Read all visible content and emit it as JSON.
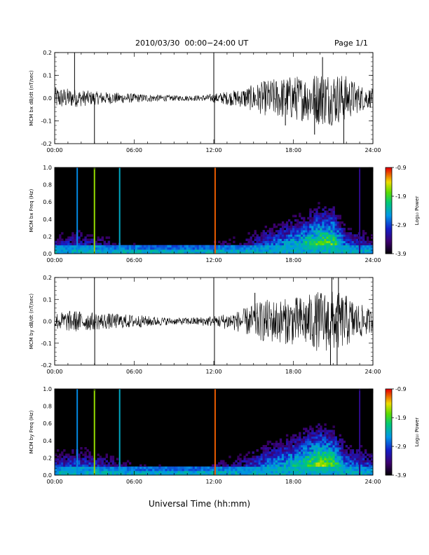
{
  "header": {
    "title": "2010/03/30  00:00−24:00 UT",
    "page": "Page 1/1"
  },
  "footer": {
    "xlabel": "Universal Time (hh:mm)"
  },
  "colorbar": {
    "title": "Log₁₀ Power",
    "ticks": [
      "-0.9",
      "-1.9",
      "-2.9",
      "-3.9"
    ],
    "range": [
      -3.9,
      -0.9
    ]
  },
  "chart_data": [
    {
      "type": "line",
      "panel": "bx-timeseries",
      "ylabel": "MCM bx dB/dt (nT/sec)",
      "xlim": [
        0,
        24
      ],
      "ylim": [
        -0.2,
        0.2
      ],
      "x_ticks": [
        "00:00",
        "06:00",
        "12:00",
        "18:00",
        "24:00"
      ],
      "y_ticks": [
        "0.2",
        "0.1",
        "0.0",
        "-0.1",
        "-0.2"
      ],
      "noise_envelope": [
        [
          0,
          0.05
        ],
        [
          1.5,
          0.04
        ],
        [
          3,
          0.03
        ],
        [
          6,
          0.02
        ],
        [
          9,
          0.012
        ],
        [
          11,
          0.012
        ],
        [
          12,
          0.02
        ],
        [
          14,
          0.04
        ],
        [
          15,
          0.06
        ],
        [
          16,
          0.08
        ],
        [
          17,
          0.09
        ],
        [
          18,
          0.1
        ],
        [
          19,
          0.1
        ],
        [
          20,
          0.12
        ],
        [
          21,
          0.12
        ],
        [
          22,
          0.1
        ],
        [
          23,
          0.06
        ],
        [
          24,
          0.04
        ]
      ],
      "spikes": [
        {
          "x": 1.5,
          "y": 0.21
        },
        {
          "x": 3.0,
          "y": -0.21
        },
        {
          "x": 12.0,
          "y": 0.22
        },
        {
          "x": 12.05,
          "y": -0.22
        },
        {
          "x": 21.8,
          "y": -0.21
        },
        {
          "x": 20.2,
          "y": 0.18
        },
        {
          "x": 19.6,
          "y": -0.16
        },
        {
          "x": 17.4,
          "y": -0.12
        }
      ]
    },
    {
      "type": "heatmap",
      "panel": "bx-spectrogram",
      "ylabel": "MCM bx Freq (Hz)",
      "xlim": [
        0,
        24
      ],
      "ylim": [
        0,
        1
      ],
      "x_ticks": [
        "00:00",
        "06:00",
        "12:00",
        "18:00",
        "24:00"
      ],
      "y_ticks": [
        "1.0",
        "0.8",
        "0.6",
        "0.4",
        "0.2",
        "0.0"
      ],
      "color_range": [
        -3.9,
        -0.9
      ],
      "activity": [
        [
          0,
          0.25
        ],
        [
          2,
          0.3
        ],
        [
          4,
          0.2
        ],
        [
          6,
          0.12
        ],
        [
          9,
          0.08
        ],
        [
          11,
          0.1
        ],
        [
          12,
          0.15
        ],
        [
          14,
          0.2
        ],
        [
          16,
          0.35
        ],
        [
          18,
          0.45
        ],
        [
          20,
          0.6
        ],
        [
          21,
          0.6
        ],
        [
          22,
          0.35
        ],
        [
          24,
          0.25
        ]
      ],
      "vertical_lines": [
        {
          "x": 1.7,
          "level": -2.6
        },
        {
          "x": 3.0,
          "level": -1.6
        },
        {
          "x": 4.9,
          "level": -2.4
        },
        {
          "x": 12.1,
          "level": -1.1
        },
        {
          "x": 23.0,
          "level": -3.3
        }
      ]
    },
    {
      "type": "line",
      "panel": "by-timeseries",
      "ylabel": "MCM by dB/dt (nT/sec)",
      "xlim": [
        0,
        24
      ],
      "ylim": [
        -0.2,
        0.2
      ],
      "x_ticks": [
        "00:00",
        "06:00",
        "12:00",
        "18:00",
        "24:00"
      ],
      "y_ticks": [
        "0.2",
        "0.1",
        "0.0",
        "-0.1",
        "-0.2"
      ],
      "noise_envelope": [
        [
          0,
          0.04
        ],
        [
          1.5,
          0.05
        ],
        [
          3,
          0.04
        ],
        [
          6,
          0.03
        ],
        [
          9,
          0.015
        ],
        [
          11,
          0.02
        ],
        [
          12,
          0.025
        ],
        [
          14,
          0.05
        ],
        [
          15,
          0.08
        ],
        [
          16,
          0.1
        ],
        [
          17,
          0.1
        ],
        [
          18,
          0.11
        ],
        [
          19,
          0.12
        ],
        [
          20,
          0.14
        ],
        [
          21,
          0.14
        ],
        [
          22,
          0.12
        ],
        [
          23,
          0.08
        ],
        [
          24,
          0.05
        ]
      ],
      "spikes": [
        {
          "x": 3.0,
          "y": 0.21
        },
        {
          "x": 3.02,
          "y": -0.21
        },
        {
          "x": 12.0,
          "y": 0.22
        },
        {
          "x": 12.05,
          "y": -0.22
        },
        {
          "x": 20.8,
          "y": -0.21
        },
        {
          "x": 21.3,
          "y": -0.21
        },
        {
          "x": 20.9,
          "y": 0.21
        },
        {
          "x": 21.4,
          "y": 0.2
        },
        {
          "x": 15.1,
          "y": 0.13
        }
      ]
    },
    {
      "type": "heatmap",
      "panel": "by-spectrogram",
      "ylabel": "MCM by Freq (Hz)",
      "xlim": [
        0,
        24
      ],
      "ylim": [
        0,
        1
      ],
      "x_ticks": [
        "00:00",
        "06:00",
        "12:00",
        "18:00",
        "24:00"
      ],
      "y_ticks": [
        "1.0",
        "0.8",
        "0.6",
        "0.4",
        "0.2",
        "0.0"
      ],
      "color_range": [
        -3.9,
        -0.9
      ],
      "activity": [
        [
          0,
          0.3
        ],
        [
          2,
          0.35
        ],
        [
          4,
          0.25
        ],
        [
          6,
          0.15
        ],
        [
          9,
          0.1
        ],
        [
          11,
          0.12
        ],
        [
          12,
          0.18
        ],
        [
          14,
          0.25
        ],
        [
          16,
          0.4
        ],
        [
          18,
          0.5
        ],
        [
          20,
          0.65
        ],
        [
          21,
          0.6
        ],
        [
          22,
          0.4
        ],
        [
          24,
          0.3
        ]
      ],
      "vertical_lines": [
        {
          "x": 1.7,
          "level": -2.6
        },
        {
          "x": 3.0,
          "level": -1.6
        },
        {
          "x": 4.9,
          "level": -2.4
        },
        {
          "x": 12.1,
          "level": -1.1
        },
        {
          "x": 23.0,
          "level": -3.3
        }
      ]
    }
  ]
}
